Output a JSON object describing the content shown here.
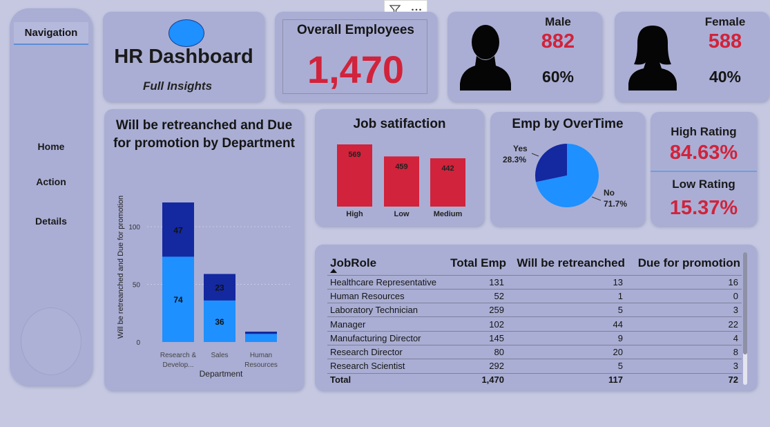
{
  "navigation": {
    "title": "Navigation",
    "items": [
      {
        "label": "Home"
      },
      {
        "label": "Action"
      },
      {
        "label": "Details"
      }
    ]
  },
  "header": {
    "title": "HR Dashboard",
    "subtitle": "Full Insights"
  },
  "overall": {
    "label": "Overall Employees",
    "value": "1,470"
  },
  "male": {
    "label": "Male",
    "count": "882",
    "percent": "60%"
  },
  "female": {
    "label": "Female",
    "count": "588",
    "percent": "40%"
  },
  "rating": {
    "high_label": "High Rating",
    "high_value": "84.63%",
    "low_label": "Low Rating",
    "low_value": "15.37%"
  },
  "colors": {
    "accent_red": "#d1233b",
    "series_retrenched": "#1e90ff",
    "series_promotion": "#1428a0",
    "card_bg": "#aaaed4"
  },
  "chart_data": [
    {
      "type": "bar",
      "stacked": true,
      "title": "Will be retreanched and Due for promotion by Department",
      "xlabel": "Department",
      "ylabel": "Will be retreanched and Due for promotion",
      "categories": [
        "Research & Develop...",
        "Sales",
        "Human Resources"
      ],
      "series": [
        {
          "name": "Will be retreanched",
          "values": [
            74,
            36,
            7
          ]
        },
        {
          "name": "Due for promotion",
          "values": [
            47,
            23,
            2
          ]
        }
      ],
      "ylim": [
        0,
        130
      ],
      "yticks": [
        0,
        50,
        100
      ],
      "data_labels": [
        "74",
        "36",
        "",
        "47",
        "23",
        ""
      ]
    },
    {
      "type": "bar",
      "title": "Job satifaction",
      "categories": [
        "High",
        "Low",
        "Medium"
      ],
      "values": [
        569,
        459,
        442
      ],
      "ylim": [
        0,
        600
      ]
    },
    {
      "type": "pie",
      "title": "Emp by OverTime",
      "labels": [
        "Yes",
        "No"
      ],
      "values": [
        28.3,
        71.7
      ],
      "value_labels": [
        "28.3%",
        "71.7%"
      ]
    }
  ],
  "table": {
    "columns": [
      "JobRole",
      "Total Emp",
      "Will be retreanched",
      "Due for promotion"
    ],
    "rows": [
      [
        "Healthcare Representative",
        "131",
        "13",
        "16"
      ],
      [
        "Human Resources",
        "52",
        "1",
        "0"
      ],
      [
        "Laboratory Technician",
        "259",
        "5",
        "3"
      ],
      [
        "Manager",
        "102",
        "44",
        "22"
      ],
      [
        "Manufacturing Director",
        "145",
        "9",
        "4"
      ],
      [
        "Research Director",
        "80",
        "20",
        "8"
      ],
      [
        "Research Scientist",
        "292",
        "5",
        "3"
      ]
    ],
    "total": [
      "Total",
      "1,470",
      "117",
      "72"
    ]
  }
}
